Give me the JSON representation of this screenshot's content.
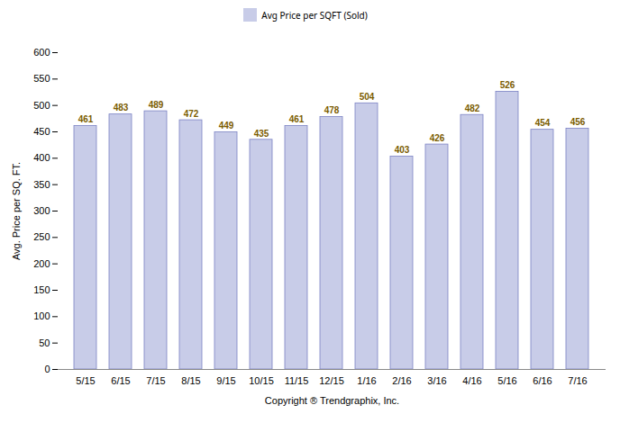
{
  "chart_data": {
    "type": "bar",
    "categories": [
      "5/15",
      "6/15",
      "7/15",
      "8/15",
      "9/15",
      "10/15",
      "11/15",
      "12/15",
      "1/16",
      "2/16",
      "3/16",
      "4/16",
      "5/16",
      "6/16",
      "7/16"
    ],
    "series": [
      {
        "name": "Avg Price per SQFT (Sold)",
        "color": "#c8cce8",
        "values": [
          461,
          483,
          489,
          472,
          449,
          435,
          461,
          478,
          504,
          403,
          426,
          482,
          526,
          454,
          456
        ]
      }
    ],
    "xlabel": "Copyright ® Trendgraphix, Inc.",
    "ylabel": "Avg. Price per SQ. FT.",
    "ylim": [
      0,
      600
    ],
    "yticks": [
      0,
      50,
      100,
      150,
      200,
      250,
      300,
      350,
      400,
      450,
      500,
      550,
      600
    ],
    "grid": false,
    "legend": "top",
    "data_labels": true
  }
}
